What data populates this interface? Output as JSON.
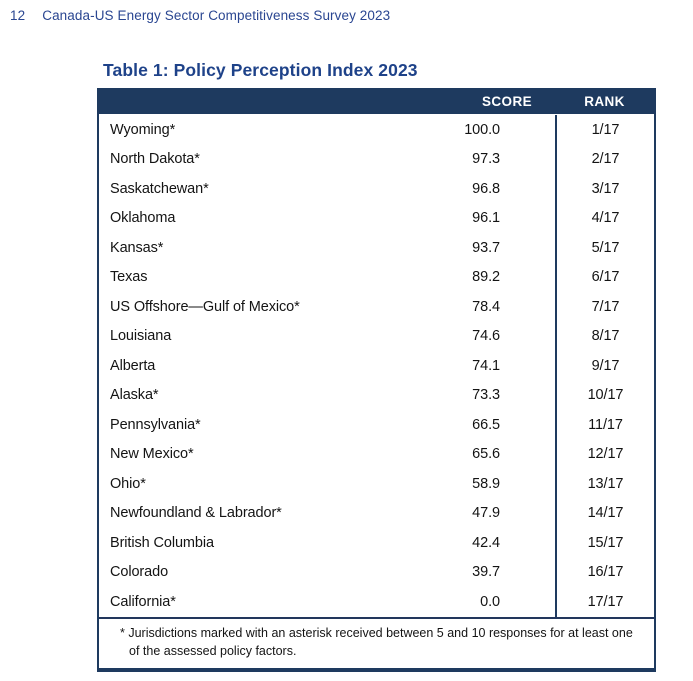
{
  "page_header": {
    "page_number": "12",
    "document_title": "Canada-US Energy Sector Competitiveness Survey 2023"
  },
  "table": {
    "title": "Table 1: Policy Perception Index 2023",
    "columns": {
      "score": "SCORE",
      "rank": "RANK"
    },
    "rows": [
      {
        "jurisdiction": "Wyoming*",
        "score": "100.0",
        "rank": "1/17"
      },
      {
        "jurisdiction": "North Dakota*",
        "score": "97.3",
        "rank": "2/17"
      },
      {
        "jurisdiction": "Saskatchewan*",
        "score": "96.8",
        "rank": "3/17"
      },
      {
        "jurisdiction": "Oklahoma",
        "score": "96.1",
        "rank": "4/17"
      },
      {
        "jurisdiction": "Kansas*",
        "score": "93.7",
        "rank": "5/17"
      },
      {
        "jurisdiction": "Texas",
        "score": "89.2",
        "rank": "6/17"
      },
      {
        "jurisdiction": "US Offshore—Gulf of Mexico*",
        "score": "78.4",
        "rank": "7/17"
      },
      {
        "jurisdiction": "Louisiana",
        "score": "74.6",
        "rank": "8/17"
      },
      {
        "jurisdiction": "Alberta",
        "score": "74.1",
        "rank": "9/17"
      },
      {
        "jurisdiction": "Alaska*",
        "score": "73.3",
        "rank": "10/17"
      },
      {
        "jurisdiction": "Pennsylvania*",
        "score": "66.5",
        "rank": "11/17"
      },
      {
        "jurisdiction": "New Mexico*",
        "score": "65.6",
        "rank": "12/17"
      },
      {
        "jurisdiction": "Ohio*",
        "score": "58.9",
        "rank": "13/17"
      },
      {
        "jurisdiction": "Newfoundland & Labrador*",
        "score": "47.9",
        "rank": "14/17"
      },
      {
        "jurisdiction": "British Columbia",
        "score": "42.4",
        "rank": "15/17"
      },
      {
        "jurisdiction": "Colorado",
        "score": "39.7",
        "rank": "16/17"
      },
      {
        "jurisdiction": "California*",
        "score": "0.0",
        "rank": "17/17"
      }
    ],
    "footnote": "* Jurisdictions marked with an asterisk received between 5 and 10 responses for at least one of the assessed policy factors."
  },
  "colors": {
    "table_header_navy": "#1e3a5f",
    "page_header_blue": "#2a4691",
    "title_blue": "#1e4289",
    "body_text": "#141414"
  }
}
